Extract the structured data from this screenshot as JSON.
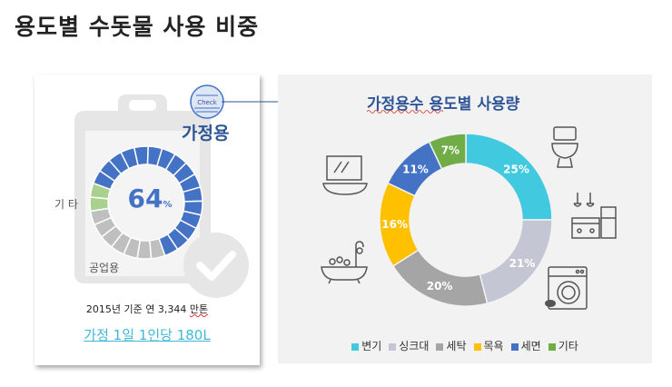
{
  "page": {
    "title": "용도별 수돗물 사용 비중"
  },
  "left_card": {
    "check_badge": "Check",
    "category": "가정용",
    "center_value": "64",
    "center_unit": "%",
    "label_other": "기 타",
    "label_industrial": "공업용",
    "stat_prefix": "2015년 기준 연 3,344 ",
    "stat_unit": "만톤",
    "per_person": "가정 1일 1인당 180L"
  },
  "colors": {
    "blue": "#4472c4",
    "green": "#a9d18e",
    "gray": "#bfbfbf",
    "title_blue": "#2f5597",
    "link_cyan": "#3fb8d8"
  },
  "chart_data": {
    "type": "pie",
    "title": "가정용수 용도별 사용량",
    "categories": [
      "변기",
      "싱크대",
      "세탁",
      "목욕",
      "세면",
      "기타"
    ],
    "values": [
      25,
      21,
      20,
      16,
      11,
      7
    ],
    "labels": [
      "25%",
      "21%",
      "20%",
      "16%",
      "11%",
      "7%"
    ],
    "colors": [
      "#41c9df",
      "#c4c7d3",
      "#a5a5a5",
      "#ffc000",
      "#4472c4",
      "#70ad47"
    ],
    "legend_position": "bottom",
    "icons": [
      "toilet-icon",
      "kitchen-icon",
      "washing-machine-icon",
      "bathtub-icon",
      "washbasin-icon"
    ]
  }
}
